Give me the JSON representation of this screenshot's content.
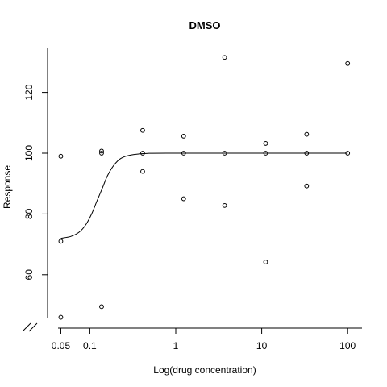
{
  "chart_data": {
    "type": "scatter",
    "title": "DMSO",
    "xlabel": "Log(drug concentration)",
    "ylabel": "Response",
    "x_scale": "log",
    "x_ticks": [
      {
        "value": 0.046,
        "label": "0.05"
      },
      {
        "value": 0.1,
        "label": "0.1"
      },
      {
        "value": 1,
        "label": "1"
      },
      {
        "value": 10,
        "label": "10"
      },
      {
        "value": 100,
        "label": "100"
      }
    ],
    "y_ticks": [
      60,
      80,
      100,
      120
    ],
    "xlim": [
      0.04,
      140
    ],
    "ylim": [
      43,
      135
    ],
    "axis_break": true,
    "grid": false,
    "legend": "none",
    "points": [
      {
        "x": 0.046,
        "y": 99
      },
      {
        "x": 0.046,
        "y": 71
      },
      {
        "x": 0.046,
        "y": 46
      },
      {
        "x": 0.137,
        "y": 100.7
      },
      {
        "x": 0.137,
        "y": 100
      },
      {
        "x": 0.137,
        "y": 49.5
      },
      {
        "x": 0.412,
        "y": 107.5
      },
      {
        "x": 0.412,
        "y": 100
      },
      {
        "x": 0.412,
        "y": 94
      },
      {
        "x": 1.235,
        "y": 105.6
      },
      {
        "x": 1.235,
        "y": 100
      },
      {
        "x": 1.235,
        "y": 85
      },
      {
        "x": 3.704,
        "y": 131.5
      },
      {
        "x": 3.704,
        "y": 100
      },
      {
        "x": 3.704,
        "y": 82.8
      },
      {
        "x": 11.11,
        "y": 103.2
      },
      {
        "x": 11.11,
        "y": 100
      },
      {
        "x": 11.11,
        "y": 64.2
      },
      {
        "x": 33.33,
        "y": 106.2
      },
      {
        "x": 33.33,
        "y": 100
      },
      {
        "x": 33.33,
        "y": 89.2
      },
      {
        "x": 100,
        "y": 129.5
      },
      {
        "x": 100,
        "y": 100
      }
    ],
    "fit_curve": [
      {
        "x": 0.046,
        "y": 72.0
      },
      {
        "x": 0.06,
        "y": 72.6
      },
      {
        "x": 0.075,
        "y": 74.0
      },
      {
        "x": 0.09,
        "y": 76.5
      },
      {
        "x": 0.105,
        "y": 80.0
      },
      {
        "x": 0.12,
        "y": 84.0
      },
      {
        "x": 0.14,
        "y": 88.5
      },
      {
        "x": 0.16,
        "y": 92.5
      },
      {
        "x": 0.19,
        "y": 96.0
      },
      {
        "x": 0.23,
        "y": 98.3
      },
      {
        "x": 0.3,
        "y": 99.4
      },
      {
        "x": 0.45,
        "y": 99.9
      },
      {
        "x": 1,
        "y": 100
      },
      {
        "x": 100,
        "y": 100
      }
    ]
  }
}
